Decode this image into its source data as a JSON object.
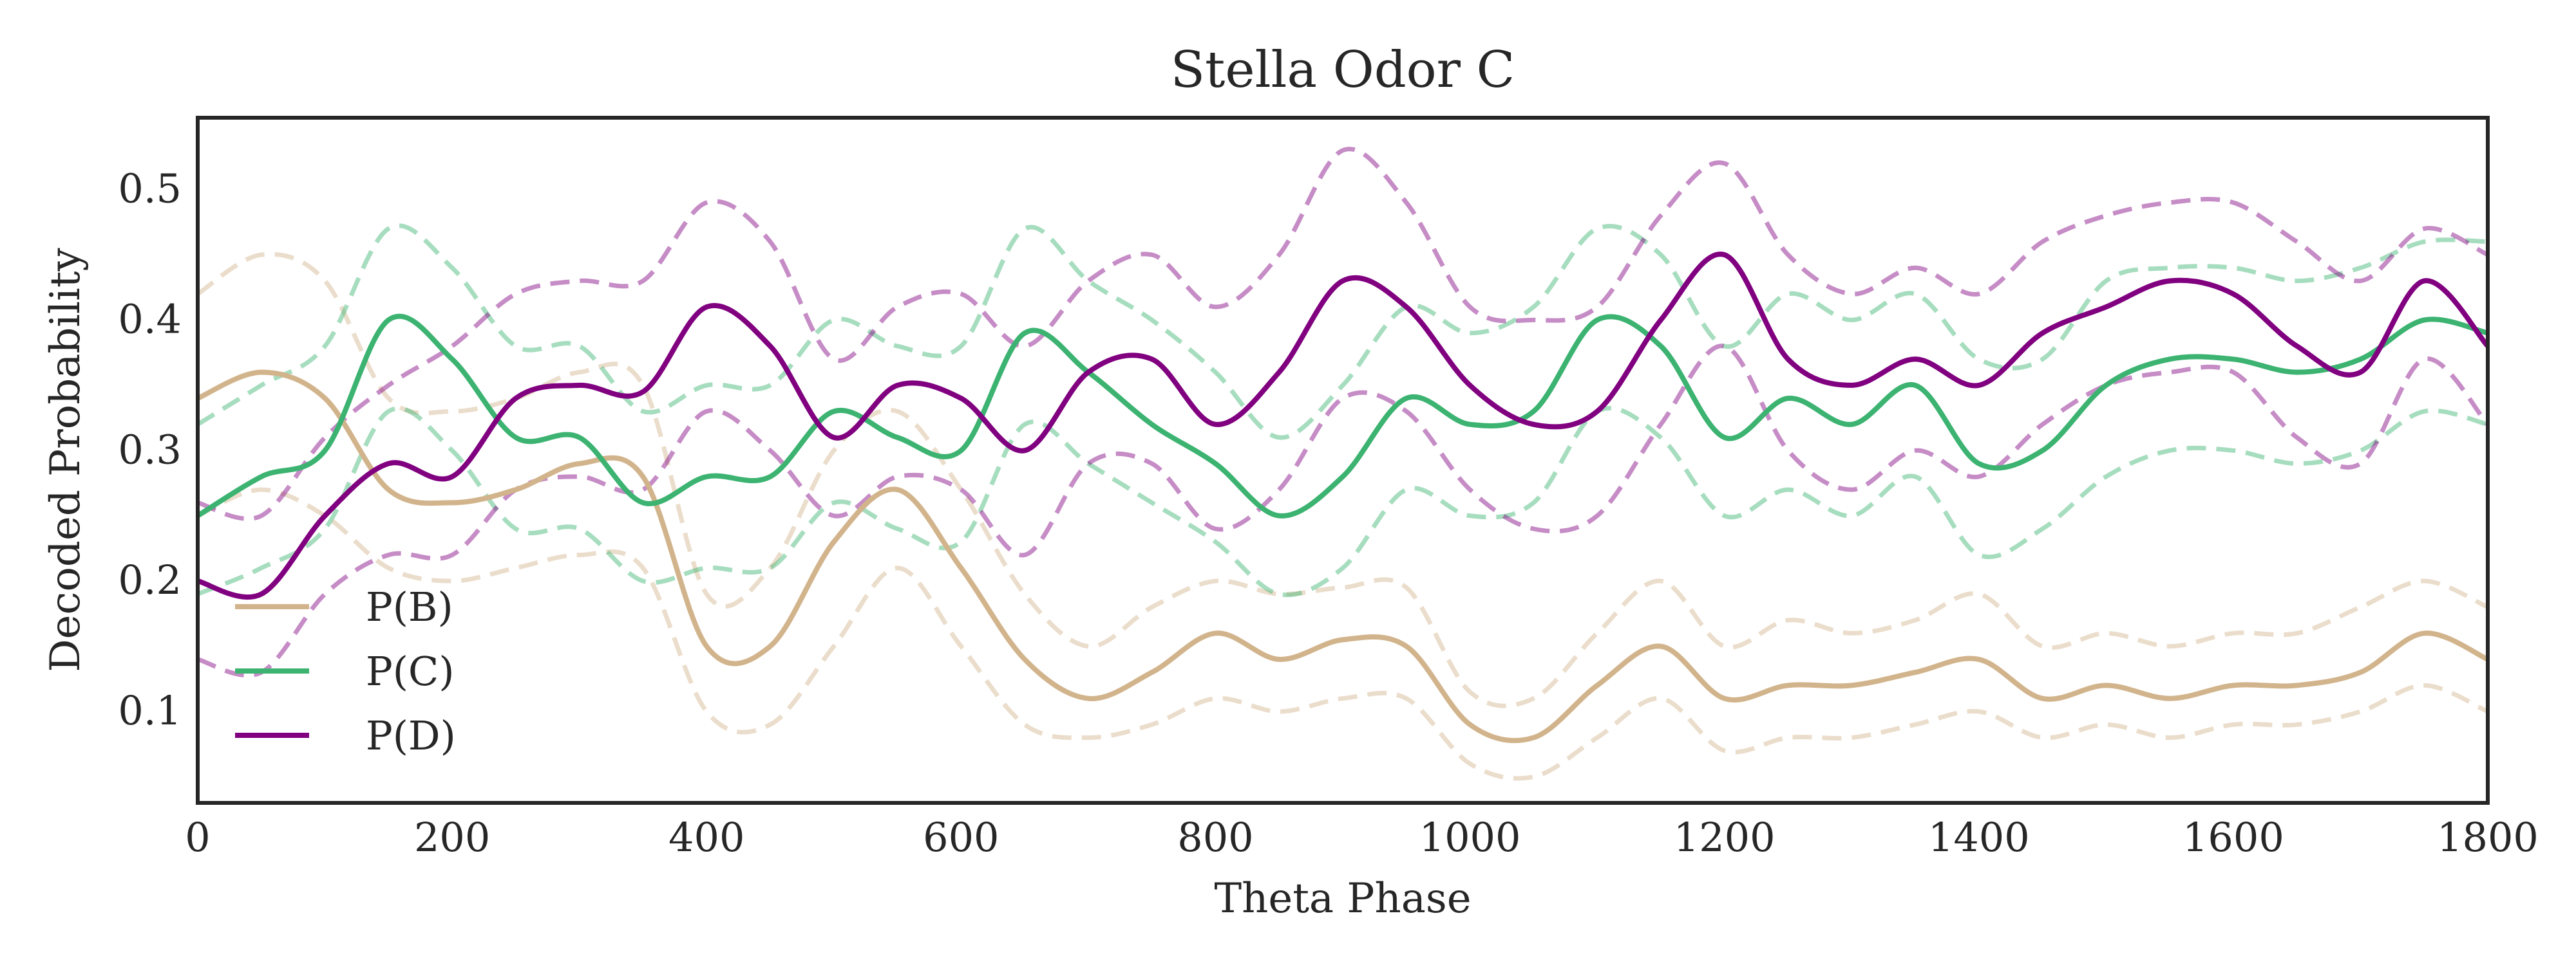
{
  "chart_data": {
    "type": "line",
    "title": "Stella Odor C",
    "xlabel": "Theta Phase",
    "ylabel": "Decoded Probability",
    "xlim": [
      0,
      1800
    ],
    "ylim": [
      0.03,
      0.555
    ],
    "xticks": [
      0,
      200,
      400,
      600,
      800,
      1000,
      1200,
      1400,
      1600,
      1800
    ],
    "yticks": [
      0.1,
      0.2,
      0.3,
      0.4,
      0.5
    ],
    "grid": false,
    "legend_position": "lower-left",
    "x": [
      0,
      50,
      100,
      150,
      200,
      250,
      300,
      350,
      400,
      450,
      500,
      550,
      600,
      650,
      700,
      750,
      800,
      850,
      900,
      950,
      1000,
      1050,
      1100,
      1150,
      1200,
      1250,
      1300,
      1350,
      1400,
      1450,
      1500,
      1550,
      1600,
      1650,
      1700,
      1750,
      1800
    ],
    "series": [
      {
        "name": "P(B)",
        "color": "#d2b48c",
        "values": [
          0.34,
          0.36,
          0.34,
          0.27,
          0.26,
          0.27,
          0.29,
          0.28,
          0.15,
          0.15,
          0.23,
          0.27,
          0.21,
          0.14,
          0.11,
          0.13,
          0.16,
          0.14,
          0.155,
          0.15,
          0.09,
          0.08,
          0.12,
          0.15,
          0.11,
          0.12,
          0.12,
          0.13,
          0.14,
          0.11,
          0.12,
          0.11,
          0.12,
          0.12,
          0.13,
          0.16,
          0.14
        ],
        "upper": [
          0.42,
          0.45,
          0.43,
          0.34,
          0.33,
          0.34,
          0.36,
          0.35,
          0.19,
          0.21,
          0.3,
          0.33,
          0.27,
          0.19,
          0.15,
          0.18,
          0.2,
          0.19,
          0.195,
          0.195,
          0.115,
          0.11,
          0.16,
          0.2,
          0.15,
          0.17,
          0.16,
          0.17,
          0.19,
          0.15,
          0.16,
          0.15,
          0.16,
          0.16,
          0.18,
          0.2,
          0.18
        ],
        "lower": [
          0.25,
          0.27,
          0.25,
          0.21,
          0.2,
          0.21,
          0.22,
          0.21,
          0.1,
          0.09,
          0.15,
          0.21,
          0.15,
          0.09,
          0.08,
          0.09,
          0.11,
          0.1,
          0.11,
          0.11,
          0.06,
          0.05,
          0.08,
          0.11,
          0.07,
          0.08,
          0.08,
          0.09,
          0.1,
          0.08,
          0.09,
          0.08,
          0.09,
          0.09,
          0.1,
          0.12,
          0.1
        ]
      },
      {
        "name": "P(C)",
        "color": "#3cb371",
        "values": [
          0.25,
          0.28,
          0.3,
          0.4,
          0.37,
          0.31,
          0.31,
          0.26,
          0.28,
          0.28,
          0.33,
          0.31,
          0.3,
          0.39,
          0.36,
          0.32,
          0.29,
          0.25,
          0.28,
          0.34,
          0.32,
          0.33,
          0.4,
          0.38,
          0.31,
          0.34,
          0.32,
          0.35,
          0.29,
          0.3,
          0.35,
          0.37,
          0.37,
          0.36,
          0.37,
          0.4,
          0.39
        ],
        "upper": [
          0.32,
          0.35,
          0.38,
          0.47,
          0.44,
          0.38,
          0.38,
          0.33,
          0.35,
          0.35,
          0.4,
          0.38,
          0.38,
          0.47,
          0.43,
          0.4,
          0.36,
          0.31,
          0.35,
          0.41,
          0.39,
          0.41,
          0.47,
          0.45,
          0.38,
          0.42,
          0.4,
          0.42,
          0.37,
          0.37,
          0.43,
          0.44,
          0.44,
          0.43,
          0.44,
          0.46,
          0.46
        ],
        "lower": [
          0.19,
          0.21,
          0.24,
          0.33,
          0.3,
          0.24,
          0.24,
          0.2,
          0.21,
          0.21,
          0.26,
          0.24,
          0.23,
          0.32,
          0.29,
          0.26,
          0.23,
          0.19,
          0.21,
          0.27,
          0.25,
          0.26,
          0.33,
          0.31,
          0.25,
          0.27,
          0.25,
          0.28,
          0.22,
          0.24,
          0.28,
          0.3,
          0.3,
          0.29,
          0.3,
          0.33,
          0.32
        ]
      },
      {
        "name": "P(D)",
        "color": "#800080",
        "values": [
          0.2,
          0.19,
          0.25,
          0.29,
          0.28,
          0.34,
          0.35,
          0.345,
          0.41,
          0.38,
          0.31,
          0.35,
          0.34,
          0.3,
          0.36,
          0.37,
          0.32,
          0.36,
          0.43,
          0.41,
          0.35,
          0.32,
          0.33,
          0.4,
          0.45,
          0.37,
          0.35,
          0.37,
          0.35,
          0.39,
          0.41,
          0.43,
          0.42,
          0.38,
          0.36,
          0.43,
          0.38
        ],
        "upper": [
          0.26,
          0.25,
          0.31,
          0.35,
          0.38,
          0.42,
          0.43,
          0.43,
          0.49,
          0.46,
          0.37,
          0.41,
          0.42,
          0.38,
          0.43,
          0.45,
          0.41,
          0.45,
          0.53,
          0.49,
          0.41,
          0.4,
          0.41,
          0.48,
          0.52,
          0.45,
          0.42,
          0.44,
          0.42,
          0.46,
          0.48,
          0.49,
          0.49,
          0.46,
          0.43,
          0.47,
          0.45
        ],
        "lower": [
          0.14,
          0.13,
          0.19,
          0.22,
          0.22,
          0.27,
          0.28,
          0.27,
          0.33,
          0.3,
          0.25,
          0.28,
          0.27,
          0.22,
          0.29,
          0.29,
          0.24,
          0.27,
          0.34,
          0.33,
          0.27,
          0.24,
          0.25,
          0.32,
          0.38,
          0.3,
          0.27,
          0.3,
          0.28,
          0.32,
          0.35,
          0.36,
          0.36,
          0.31,
          0.29,
          0.37,
          0.32
        ]
      }
    ]
  }
}
